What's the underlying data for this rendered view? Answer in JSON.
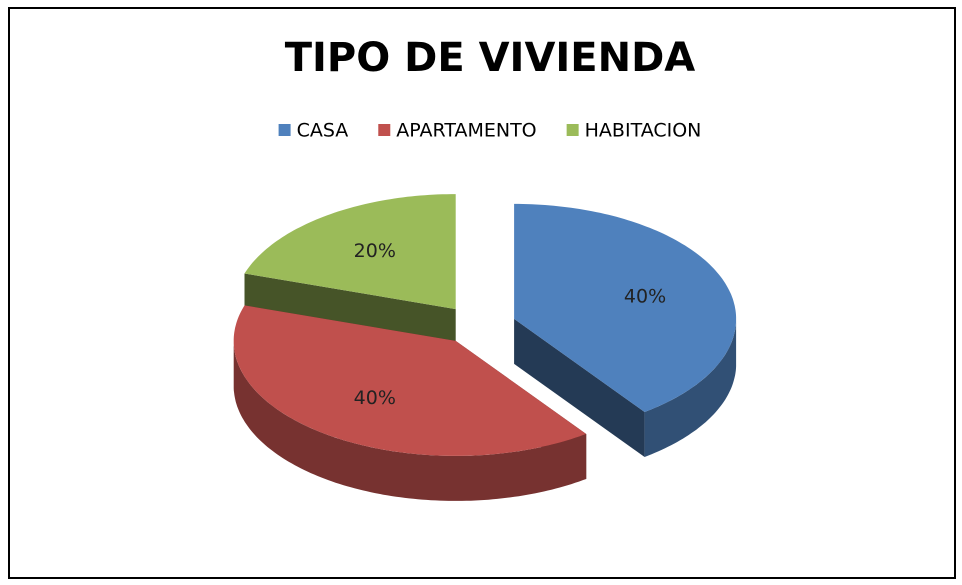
{
  "chart_data": {
    "type": "pie",
    "title": "TIPO DE VIVIENDA",
    "categories": [
      "CASA",
      "APARTAMENTO",
      "HABITACION"
    ],
    "values": [
      40,
      40,
      20
    ],
    "value_labels": [
      "40%",
      "40%",
      "20%"
    ],
    "colors": [
      "#4f81bd",
      "#c0504d",
      "#9bbb59"
    ],
    "legend": "top"
  }
}
